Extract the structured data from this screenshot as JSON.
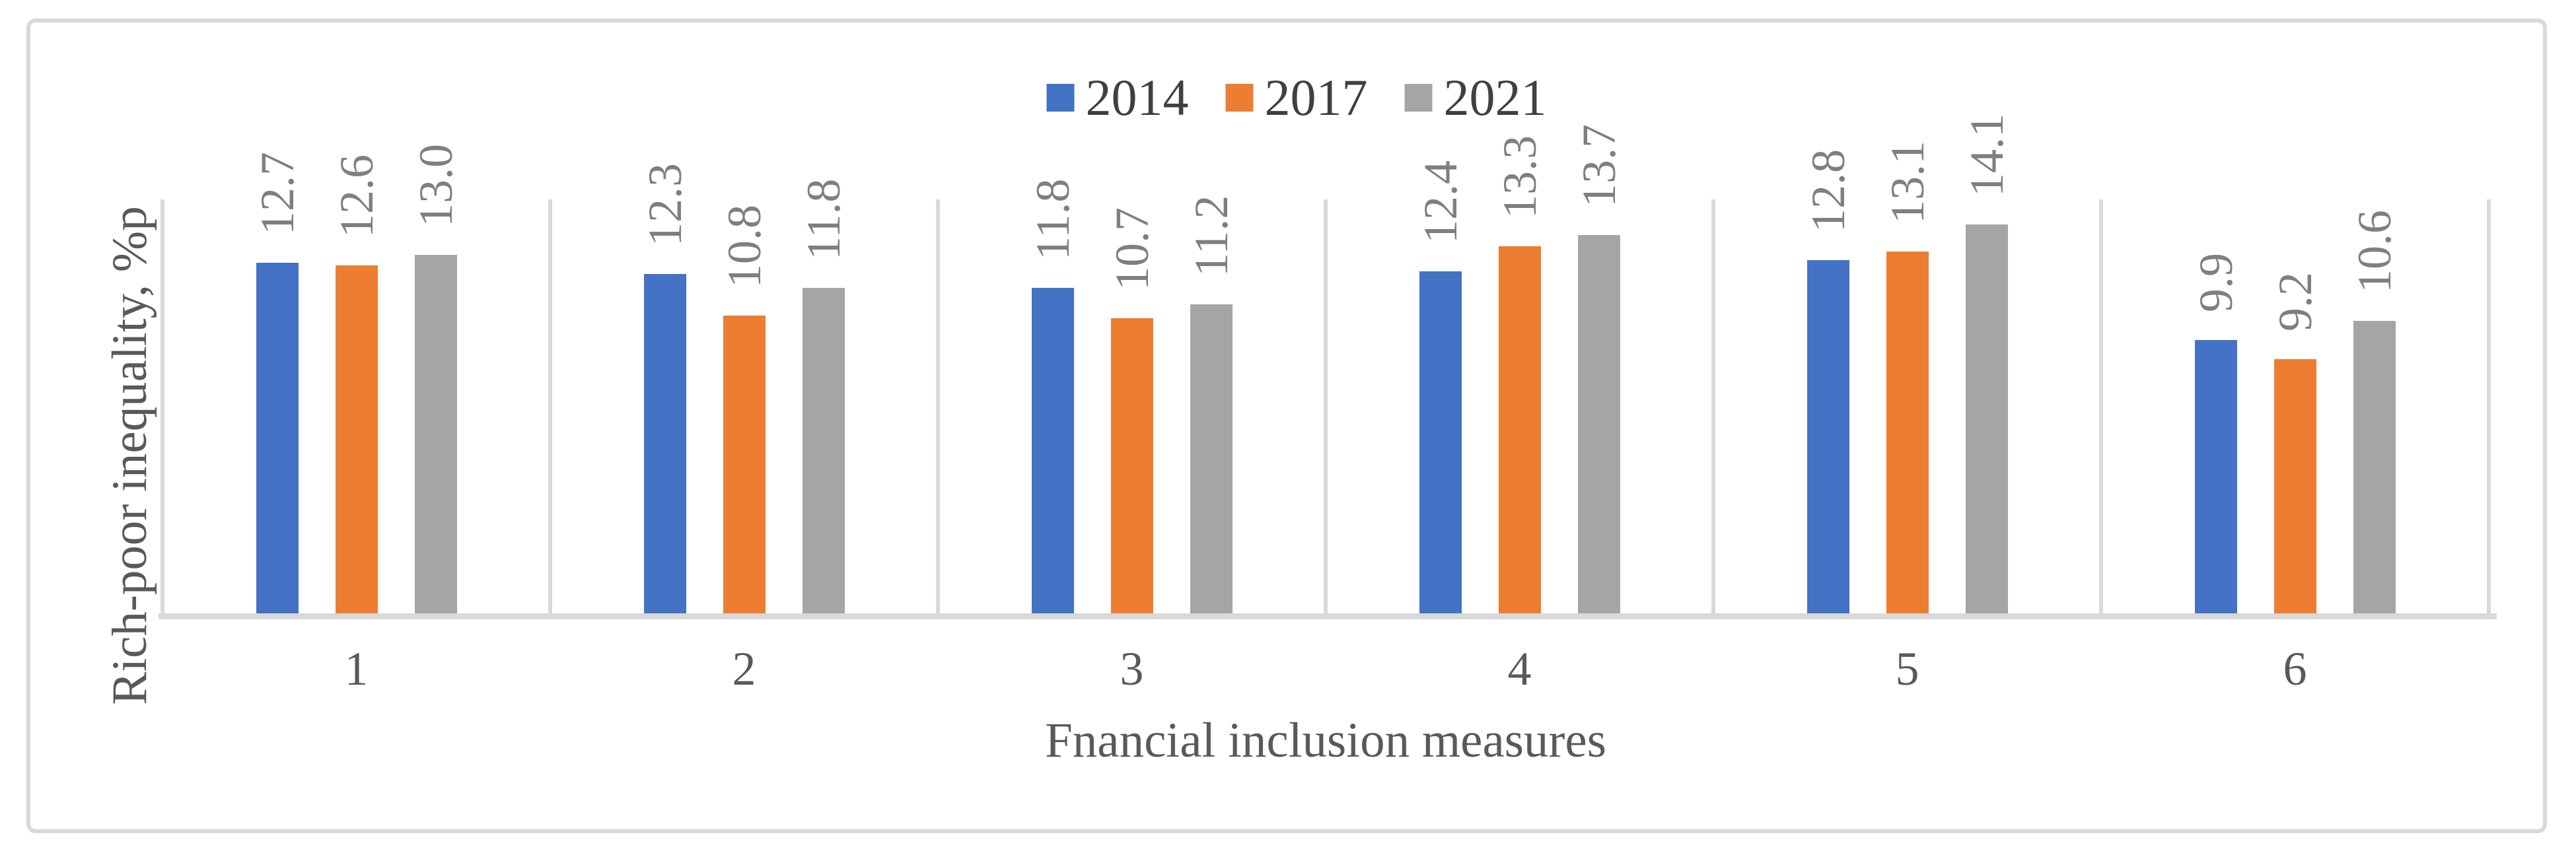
{
  "chart_data": {
    "type": "bar",
    "title": "",
    "xlabel": "Fnancial inclusion measures",
    "ylabel": "Rich-poor inequality, %p",
    "categories": [
      "1",
      "2",
      "3",
      "4",
      "5",
      "6"
    ],
    "series": [
      {
        "name": "2014",
        "color": "#4472C4",
        "values": [
          12.7,
          12.3,
          11.8,
          12.4,
          12.8,
          9.9
        ]
      },
      {
        "name": "2017",
        "color": "#ED7D31",
        "values": [
          12.6,
          10.8,
          10.7,
          13.3,
          13.1,
          9.2
        ]
      },
      {
        "name": "2021",
        "color": "#A5A5A5",
        "values": [
          13.0,
          11.8,
          11.2,
          13.7,
          14.1,
          10.6
        ]
      }
    ],
    "ylim": [
      0,
      15
    ],
    "y_ticks_visible": false,
    "data_labels": true,
    "data_label_decimals": 1,
    "data_label_rotation": -90,
    "legend_position": "top-center",
    "grid": "vertical-category-separators",
    "grid_color": "#D9D9D9",
    "axis_line_color": "#D9D9D9",
    "data_label_color": "#7F7F7F",
    "category_label_color": "#595959",
    "axis_title_color": "#595959",
    "legend_text_color": "#404040"
  }
}
